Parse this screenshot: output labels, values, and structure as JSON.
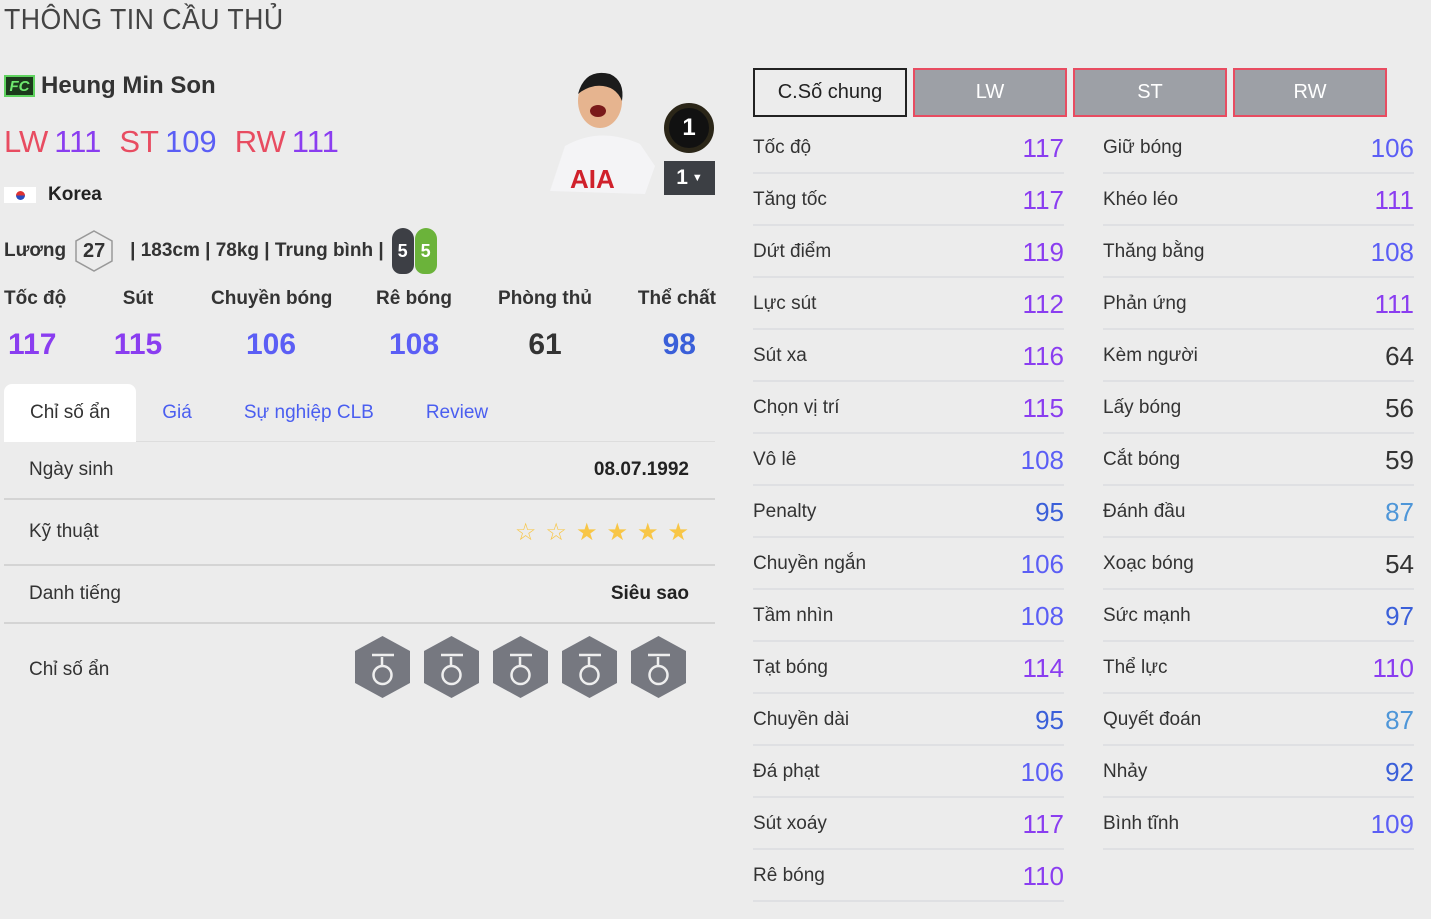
{
  "page_title": "THÔNG TIN CẦU THỦ",
  "player": {
    "season_logo": "FC",
    "name": "Heung Min Son",
    "positions": [
      {
        "pos": "LW",
        "ovr": "111"
      },
      {
        "pos": "ST",
        "ovr": "109"
      },
      {
        "pos": "RW",
        "ovr": "111"
      }
    ],
    "nation": "Korea",
    "salary_label": "Lương",
    "salary": "27",
    "details": "| 183cm | 78kg | Trung bình |",
    "weak_foot": "5",
    "strong_foot": "5",
    "team_color": "1",
    "upgrade_level": "1"
  },
  "summary": [
    {
      "label": "Tốc độ",
      "value": 117
    },
    {
      "label": "Sút",
      "value": 115
    },
    {
      "label": "Chuyền bóng",
      "value": 106
    },
    {
      "label": "Rê bóng",
      "value": 108
    },
    {
      "label": "Phòng thủ",
      "value": 61
    },
    {
      "label": "Thể chất",
      "value": 98
    }
  ],
  "tabs": [
    "Chỉ số ẩn",
    "Giá",
    "Sự nghiệp CLB",
    "Review"
  ],
  "info_rows": {
    "birth_label": "Ngày sinh",
    "birth": "08.07.1992",
    "skill_label": "Kỹ thuật",
    "skill_stars": 4,
    "skill_max": 6,
    "fame_label": "Danh tiếng",
    "fame": "Siêu sao",
    "traits_label": "Chỉ số ẩn"
  },
  "traits": [
    "curler-icon",
    "long-shot-icon",
    "power-header-icon",
    "speed-dribbler-icon",
    "playmaker-icon"
  ],
  "position_tabs": [
    "C.Số chung",
    "LW",
    "ST",
    "RW"
  ],
  "stats_left": [
    [
      "Tốc độ",
      117
    ],
    [
      "Tăng tốc",
      117
    ],
    [
      "Dứt điểm",
      119
    ],
    [
      "Lực sút",
      112
    ],
    [
      "Sút xa",
      116
    ],
    [
      "Chọn vị trí",
      115
    ],
    [
      "Vô lê",
      108
    ],
    [
      "Penalty",
      95
    ],
    [
      "Chuyền ngắn",
      106
    ],
    [
      "Tầm nhìn",
      108
    ],
    [
      "Tạt bóng",
      114
    ],
    [
      "Chuyền dài",
      95
    ],
    [
      "Đá phạt",
      106
    ],
    [
      "Sút xoáy",
      117
    ],
    [
      "Rê bóng",
      110
    ]
  ],
  "stats_right": [
    [
      "Giữ bóng",
      106
    ],
    [
      "Khéo léo",
      111
    ],
    [
      "Thăng bằng",
      108
    ],
    [
      "Phản ứng",
      111
    ],
    [
      "Kèm người",
      64
    ],
    [
      "Lấy bóng",
      56
    ],
    [
      "Cắt bóng",
      59
    ],
    [
      "Đánh đầu",
      87
    ],
    [
      "Xoạc bóng",
      54
    ],
    [
      "Sức mạnh",
      97
    ],
    [
      "Thể lực",
      110
    ],
    [
      "Quyết đoán",
      87
    ],
    [
      "Nhảy",
      92
    ],
    [
      "Bình tĩnh",
      109
    ]
  ],
  "colors": {
    "tier_110": "#8a3df0",
    "tier_100": "#5b5ef5",
    "tier_90": "#3a5fd9",
    "tier_80": "#4e96d8",
    "tier_low": "#333333",
    "position": "#e84c61",
    "accent_tab": "#4a5ef0",
    "star": "#f8c646"
  }
}
